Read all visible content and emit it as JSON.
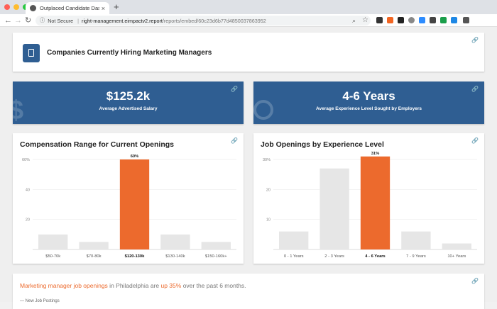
{
  "browser": {
    "tab_title": "Outplaced Candidate Dashbo",
    "not_secure": "Not Secure",
    "url_host": "right-management.eimpactv2.report",
    "url_path": "/reports/embed/60c23d6b77d4850037863952",
    "avatar_letter": "E"
  },
  "header": {
    "title": "Companies Currently Hiring Marketing Managers",
    "icon": "mobile-phone-icon"
  },
  "stats": [
    {
      "value": "$125.2k",
      "label": "Average Advertised Salary",
      "icon": "dollar-icon"
    },
    {
      "value": "4-6 Years",
      "label": "Average Experience Level Sought by Employers",
      "icon": "clock-icon"
    }
  ],
  "colors": {
    "brand_blue": "#2f5e92",
    "highlight_orange": "#ec6a2d",
    "bar_gray": "#e6e6e6"
  },
  "chart_data": [
    {
      "type": "bar",
      "title": "Compensation Range for Current Openings",
      "categories": [
        "$50-70k",
        "$70-80k",
        "$120-130k",
        "$130-140k",
        "$150-160k+"
      ],
      "values": [
        10,
        5,
        60,
        10,
        5
      ],
      "highlight_index": 2,
      "value_labels": [
        "",
        "",
        "60%",
        "",
        ""
      ],
      "yticks": [
        "60%",
        "40",
        "20"
      ],
      "ytick_values": [
        60,
        40,
        20
      ],
      "ylim": [
        0,
        60
      ],
      "grid": true
    },
    {
      "type": "bar",
      "title": "Job Openings by Experience Level",
      "categories": [
        "0 - 1 Years",
        "2 - 3 Years",
        "4 - 6 Years",
        "7 - 9 Years",
        "10+ Years"
      ],
      "values": [
        6,
        27,
        31,
        6,
        2
      ],
      "highlight_index": 2,
      "value_labels": [
        "",
        "",
        "31%",
        "",
        ""
      ],
      "yticks": [
        "30%",
        "20",
        "10"
      ],
      "ytick_values": [
        30,
        20,
        10
      ],
      "ylim": [
        0,
        30
      ],
      "grid": true
    }
  ],
  "insight": {
    "part1": "Marketing manager job openings",
    "part2": " in Philadelphia are ",
    "part3": "up 35%",
    "part4": " over the past 6 months."
  },
  "legend_partial": "New Job Postings"
}
